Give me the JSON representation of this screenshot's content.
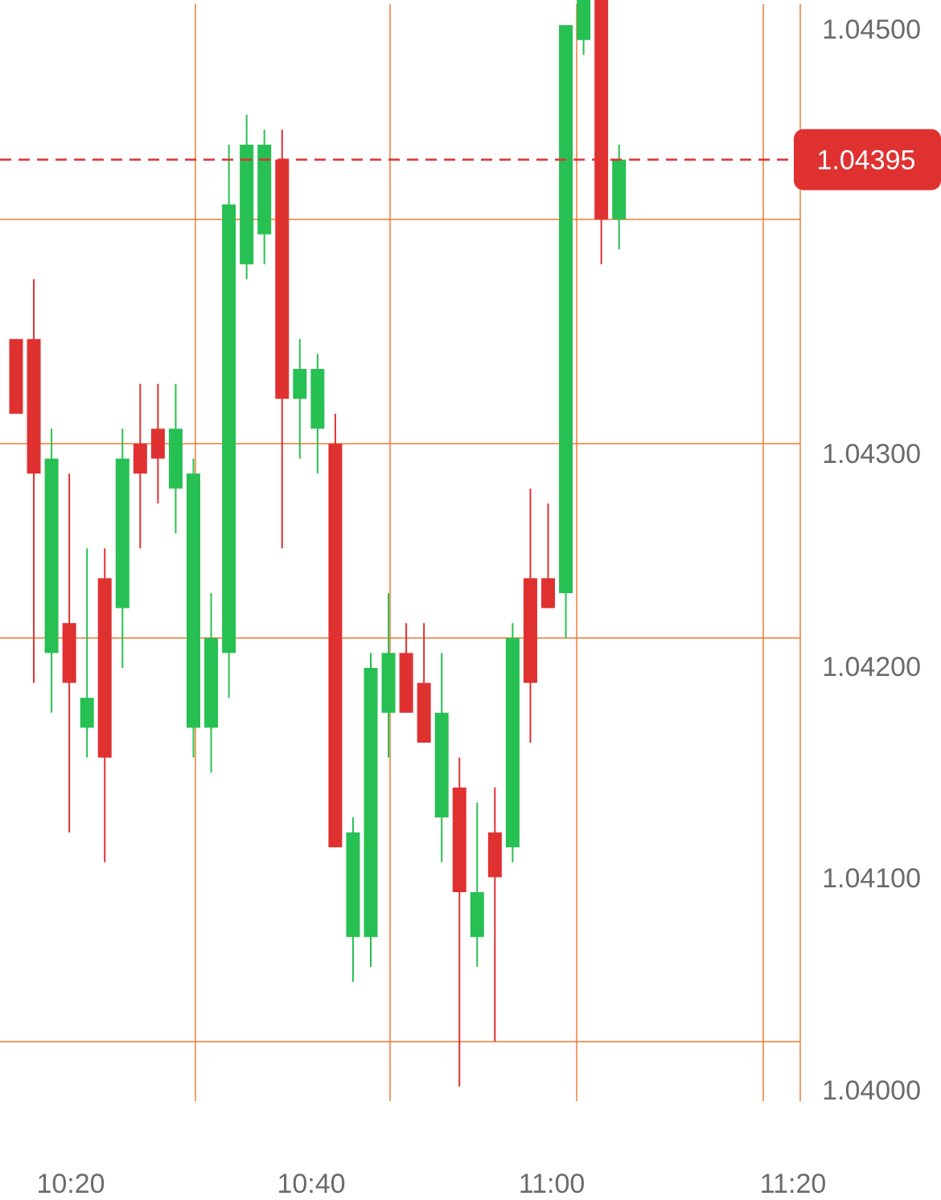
{
  "chart_data": {
    "type": "candlestick",
    "title": "",
    "xlabel": "",
    "ylabel": "",
    "ylim": [
      1.04,
      1.045
    ],
    "y_ticks": [
      "1.04500",
      "1.04300",
      "1.04200",
      "1.04100",
      "1.04000"
    ],
    "x_ticks": [
      "10:20",
      "10:40",
      "11:00",
      "11:20"
    ],
    "grid": true,
    "current_price": "1.04395",
    "colors": {
      "up": "#27c052",
      "down": "#e03131",
      "grid": "#f07a37",
      "current_line": "#e03131",
      "label_text": "#6b6b6b"
    },
    "candles": [
      {
        "o": 1.04335,
        "h": 1.04335,
        "l": 1.0431,
        "c": 1.0431
      },
      {
        "o": 1.04335,
        "h": 1.04355,
        "l": 1.0422,
        "c": 1.0429
      },
      {
        "o": 1.0423,
        "h": 1.04305,
        "l": 1.0421,
        "c": 1.04295
      },
      {
        "o": 1.0424,
        "h": 1.0429,
        "l": 1.0417,
        "c": 1.0422
      },
      {
        "o": 1.04205,
        "h": 1.04265,
        "l": 1.04195,
        "c": 1.04215
      },
      {
        "o": 1.04255,
        "h": 1.04265,
        "l": 1.0416,
        "c": 1.04195
      },
      {
        "o": 1.04245,
        "h": 1.04305,
        "l": 1.04225,
        "c": 1.04295
      },
      {
        "o": 1.043,
        "h": 1.0432,
        "l": 1.04265,
        "c": 1.0429
      },
      {
        "o": 1.04305,
        "h": 1.0432,
        "l": 1.0428,
        "c": 1.04295
      },
      {
        "o": 1.04285,
        "h": 1.0432,
        "l": 1.0427,
        "c": 1.04305
      },
      {
        "o": 1.04205,
        "h": 1.04295,
        "l": 1.04195,
        "c": 1.0429
      },
      {
        "o": 1.04205,
        "h": 1.0425,
        "l": 1.0419,
        "c": 1.04235
      },
      {
        "o": 1.0423,
        "h": 1.044,
        "l": 1.04215,
        "c": 1.0438
      },
      {
        "o": 1.0436,
        "h": 1.0441,
        "l": 1.04355,
        "c": 1.044
      },
      {
        "o": 1.0437,
        "h": 1.04405,
        "l": 1.0436,
        "c": 1.044
      },
      {
        "o": 1.04395,
        "h": 1.04405,
        "l": 1.04265,
        "c": 1.04315
      },
      {
        "o": 1.04315,
        "h": 1.04335,
        "l": 1.04295,
        "c": 1.04325
      },
      {
        "o": 1.04305,
        "h": 1.0433,
        "l": 1.0429,
        "c": 1.04325
      },
      {
        "o": 1.043,
        "h": 1.0431,
        "l": 1.04165,
        "c": 1.04165
      },
      {
        "o": 1.04135,
        "h": 1.04175,
        "l": 1.0412,
        "c": 1.0417
      },
      {
        "o": 1.04135,
        "h": 1.0423,
        "l": 1.04125,
        "c": 1.04225
      },
      {
        "o": 1.0421,
        "h": 1.0425,
        "l": 1.04195,
        "c": 1.0423
      },
      {
        "o": 1.0423,
        "h": 1.0424,
        "l": 1.04215,
        "c": 1.0421
      },
      {
        "o": 1.0422,
        "h": 1.0424,
        "l": 1.042,
        "c": 1.042
      },
      {
        "o": 1.04175,
        "h": 1.0423,
        "l": 1.0416,
        "c": 1.0421
      },
      {
        "o": 1.04185,
        "h": 1.04195,
        "l": 1.04085,
        "c": 1.0415
      },
      {
        "o": 1.04135,
        "h": 1.0418,
        "l": 1.04125,
        "c": 1.0415
      },
      {
        "o": 1.0417,
        "h": 1.04185,
        "l": 1.041,
        "c": 1.04155
      },
      {
        "o": 1.04165,
        "h": 1.0424,
        "l": 1.0416,
        "c": 1.04235
      },
      {
        "o": 1.04255,
        "h": 1.04285,
        "l": 1.042,
        "c": 1.0422
      },
      {
        "o": 1.04255,
        "h": 1.0428,
        "l": 1.04245,
        "c": 1.04245
      },
      {
        "o": 1.0425,
        "h": 1.0444,
        "l": 1.04235,
        "c": 1.0444
      },
      {
        "o": 1.04435,
        "h": 1.0447,
        "l": 1.0443,
        "c": 1.04465
      },
      {
        "o": 1.04465,
        "h": 1.0447,
        "l": 1.0436,
        "c": 1.04375
      },
      {
        "o": 1.04375,
        "h": 1.044,
        "l": 1.04365,
        "c": 1.04395
      }
    ]
  }
}
